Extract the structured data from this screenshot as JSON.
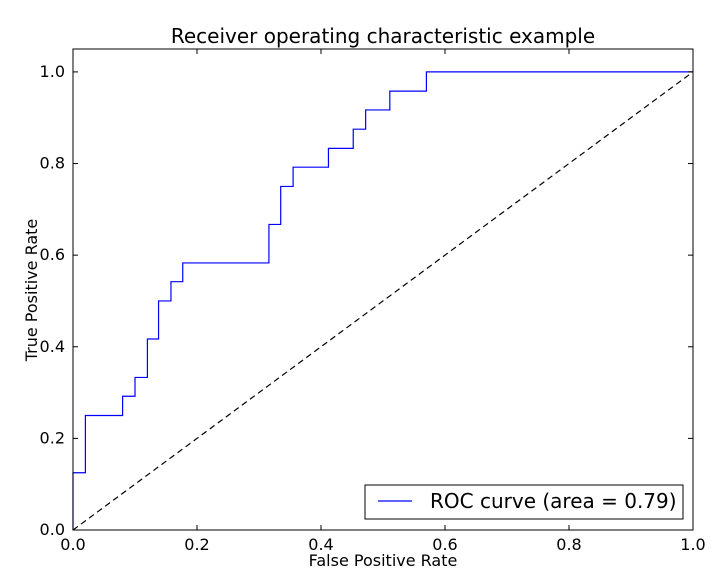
{
  "chart_data": {
    "type": "line",
    "title": "Receiver operating characteristic example",
    "xlabel": "False Positive Rate",
    "ylabel": "True Positive Rate",
    "xlim": [
      0.0,
      1.0
    ],
    "ylim": [
      0.0,
      1.05
    ],
    "x_ticks": [
      0.0,
      0.2,
      0.4,
      0.6,
      0.8,
      1.0
    ],
    "x_tick_labels": [
      "0.0",
      "0.2",
      "0.4",
      "0.6",
      "0.8",
      "1.0"
    ],
    "y_ticks": [
      0.0,
      0.2,
      0.4,
      0.6,
      0.8,
      1.0
    ],
    "y_tick_labels": [
      "0.0",
      "0.2",
      "0.4",
      "0.6",
      "0.8",
      "1.0"
    ],
    "grid": false,
    "legend_position": "lower-right",
    "series": [
      {
        "name": "ROC curve (area = 0.79)",
        "color": "#0000ff",
        "style": "solid",
        "x": [
          0.0,
          0.0,
          0.02,
          0.02,
          0.08,
          0.08,
          0.1,
          0.1,
          0.12,
          0.12,
          0.138,
          0.138,
          0.158,
          0.158,
          0.177,
          0.177,
          0.316,
          0.316,
          0.335,
          0.335,
          0.355,
          0.355,
          0.412,
          0.412,
          0.452,
          0.452,
          0.472,
          0.472,
          0.511,
          0.511,
          0.57,
          0.57,
          1.0
        ],
        "y": [
          0.0,
          0.125,
          0.125,
          0.25,
          0.25,
          0.292,
          0.292,
          0.333,
          0.333,
          0.417,
          0.417,
          0.5,
          0.5,
          0.542,
          0.542,
          0.583,
          0.583,
          0.667,
          0.667,
          0.75,
          0.75,
          0.792,
          0.792,
          0.833,
          0.833,
          0.875,
          0.875,
          0.917,
          0.917,
          0.958,
          0.958,
          1.0,
          1.0
        ]
      },
      {
        "name": "",
        "color": "#000000",
        "style": "dashed",
        "x": [
          0.0,
          1.0
        ],
        "y": [
          0.0,
          1.0
        ]
      }
    ]
  }
}
